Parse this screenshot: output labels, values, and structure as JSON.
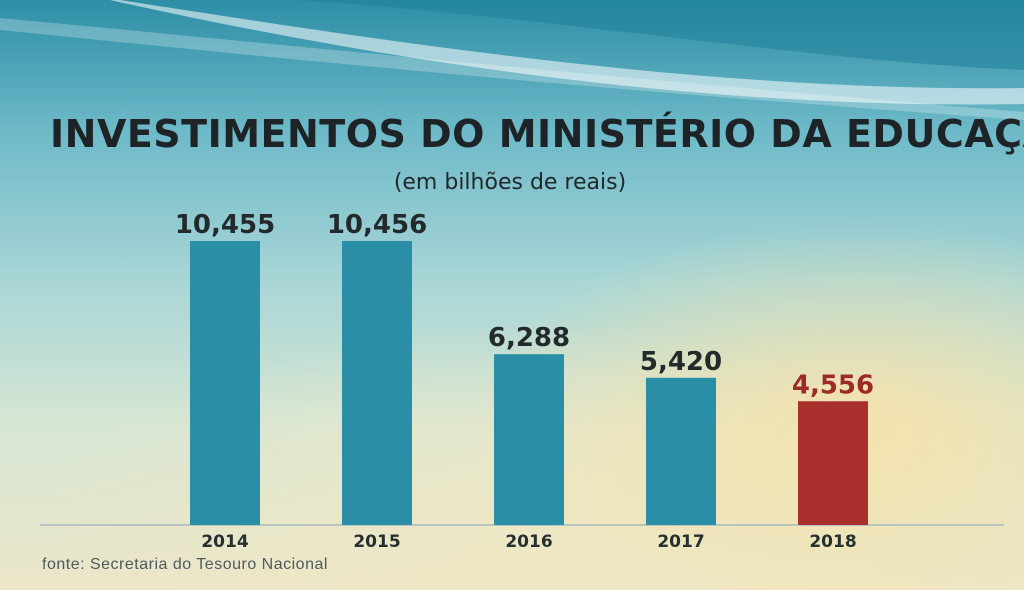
{
  "title": "INVESTIMENTOS DO MINISTÉRIO DA EDUCAÇÃO",
  "subtitle": "(em bilhões de reais)",
  "source": "fonte: Secretaria do Tesouro Nacional",
  "colors": {
    "bar": "#2a8ea7",
    "highlight": "#a92f2c",
    "highlight_label": "#9e2a27",
    "label": "#222a2c"
  },
  "chart_data": {
    "type": "bar",
    "title": "INVESTIMENTOS DO MINISTÉRIO DA EDUCAÇÃO",
    "subtitle": "(em bilhões de reais)",
    "categories": [
      "2014",
      "2015",
      "2016",
      "2017",
      "2018"
    ],
    "values": [
      10.455,
      10.456,
      6.288,
      5.42,
      4.556
    ],
    "value_labels": [
      "10,455",
      "10,456",
      "6,288",
      "5,420",
      "4,556"
    ],
    "highlight_category": "2018",
    "ylim": [
      0,
      10.456
    ],
    "grid": false,
    "legend": "none"
  }
}
